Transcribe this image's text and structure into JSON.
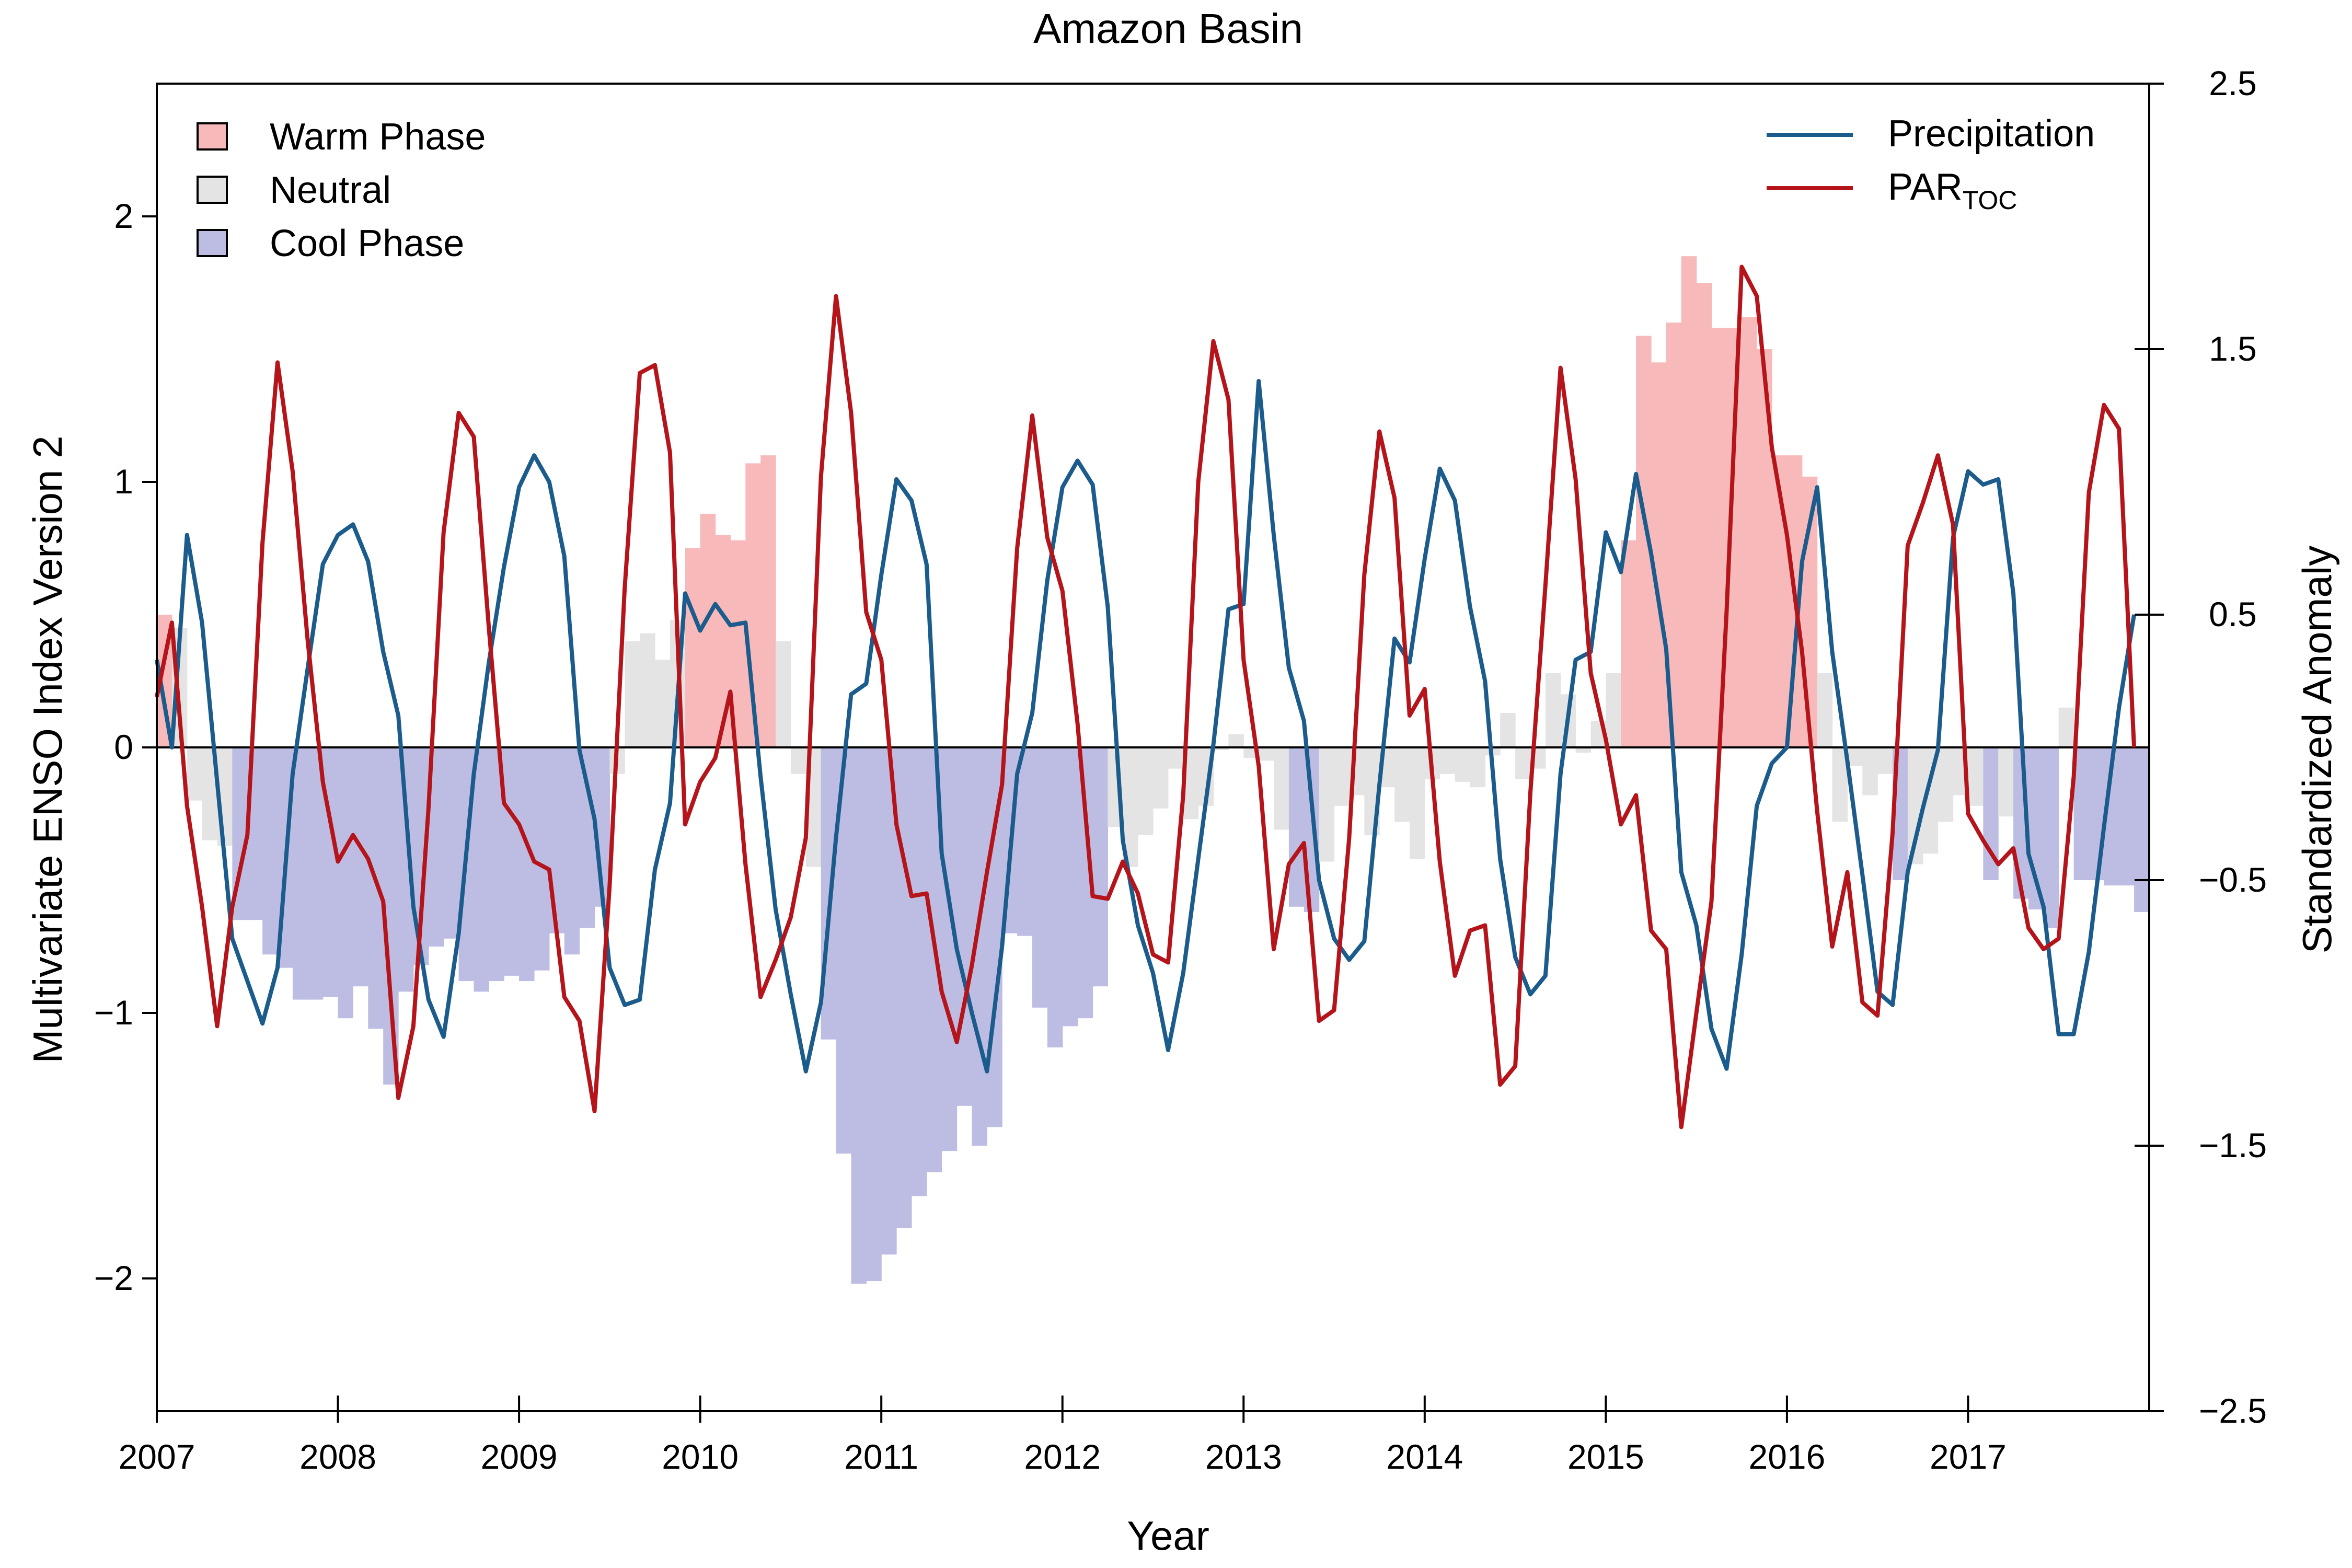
{
  "chart_data": {
    "type": "bar",
    "title": "Amazon Basin",
    "xlabel": "Year",
    "ylabel_left": "Multivariate ENSO Index Version 2",
    "ylabel_right": "Standardized Anomaly",
    "xlim": [
      2007,
      2018
    ],
    "ylim_left": [
      -2.5,
      2.5
    ],
    "ylim_right": [
      -2.5,
      2.5
    ],
    "x_ticks": [
      "2007",
      "2008",
      "2009",
      "2010",
      "2011",
      "2012",
      "2013",
      "2014",
      "2015",
      "2016",
      "2017"
    ],
    "y_left_ticks": [
      "2",
      "1",
      "0",
      "−1",
      "−2"
    ],
    "y_left_tick_values": [
      2,
      1,
      0,
      -1,
      -2
    ],
    "y_right_ticks": [
      "2.5",
      "1.5",
      "0.5",
      "−0.5",
      "−1.5",
      "−2.5"
    ],
    "y_right_tick_values": [
      2.5,
      1.5,
      0.5,
      -0.5,
      -1.5,
      -2.5
    ],
    "legend_left": [
      {
        "label": "Warm Phase",
        "color": "#f7b9b9"
      },
      {
        "label": "Neutral",
        "color": "#e4e4e4"
      },
      {
        "label": "Cool Phase",
        "color": "#bdbde3"
      }
    ],
    "legend_right": [
      {
        "label": "Precipitation",
        "color": "#1b5c8c"
      },
      {
        "label": "PAR",
        "subscript": "TOC",
        "color": "#b5141a"
      }
    ],
    "colors": {
      "warm": "#f7b9b9",
      "neutral": "#e4e4e4",
      "cool": "#bdbde3",
      "precipitation": "#1b5c8c",
      "par": "#b5141a"
    },
    "mei_start": 2007.0,
    "mei_step_months": 1,
    "mei_values": [
      0.5,
      0.45,
      -0.2,
      -0.35,
      -0.37,
      -0.65,
      -0.65,
      -0.78,
      -0.83,
      -0.95,
      -0.95,
      -0.94,
      -1.02,
      -0.9,
      -1.06,
      -1.27,
      -0.92,
      -0.82,
      -0.75,
      -0.72,
      -0.88,
      -0.92,
      -0.88,
      -0.86,
      -0.88,
      -0.84,
      -0.7,
      -0.78,
      -0.68,
      -0.6,
      -0.1,
      0.4,
      0.43,
      0.33,
      0.48,
      0.75,
      0.88,
      0.8,
      0.78,
      1.07,
      1.1,
      0.4,
      -0.1,
      -0.45,
      -1.1,
      -1.53,
      -2.02,
      -2.01,
      -1.91,
      -1.81,
      -1.69,
      -1.6,
      -1.52,
      -1.35,
      -1.5,
      -1.43,
      -0.7,
      -0.71,
      -0.98,
      -1.13,
      -1.05,
      -1.02,
      -0.9,
      -0.3,
      -0.45,
      -0.33,
      -0.23,
      -0.08,
      -0.27,
      -0.22,
      -0.01,
      0.05,
      -0.04,
      -0.05,
      -0.31,
      -0.6,
      -0.62,
      -0.43,
      -0.22,
      -0.18,
      -0.33,
      -0.15,
      -0.28,
      -0.42,
      -0.12,
      -0.1,
      -0.13,
      -0.15,
      -0.03,
      0.13,
      -0.12,
      -0.08,
      0.28,
      0.2,
      -0.02,
      0.1,
      0.28,
      0.78,
      1.55,
      1.45,
      1.6,
      1.85,
      1.75,
      1.58,
      1.58,
      1.62,
      1.5,
      1.1,
      1.1,
      1.02,
      0.28,
      -0.28,
      -0.07,
      -0.18,
      -0.1,
      -0.5,
      -0.44,
      -0.4,
      -0.28,
      -0.18,
      -0.22,
      -0.5,
      -0.26,
      -0.57,
      -0.61,
      -0.68,
      0.15,
      -0.5,
      -0.5,
      -0.52,
      -0.52,
      -0.62
    ],
    "series": [
      {
        "name": "Precipitation",
        "axis": "right",
        "start": 2007.0,
        "step_months": 1,
        "values": [
          0.33,
          0.0,
          0.8,
          0.47,
          -0.13,
          -0.72,
          -0.88,
          -1.04,
          -0.83,
          -0.1,
          0.3,
          0.69,
          0.8,
          0.84,
          0.7,
          0.36,
          0.12,
          -0.6,
          -0.95,
          -1.09,
          -0.7,
          -0.1,
          0.32,
          0.68,
          0.98,
          1.1,
          1.0,
          0.72,
          -0.01,
          -0.27,
          -0.83,
          -0.97,
          -0.95,
          -0.46,
          -0.21,
          0.58,
          0.44,
          0.54,
          0.46,
          0.47,
          -0.11,
          -0.61,
          -0.93,
          -1.22,
          -0.96,
          -0.34,
          0.2,
          0.24,
          0.65,
          1.01,
          0.93,
          0.69,
          -0.4,
          -0.76,
          -1.0,
          -1.22,
          -0.75,
          -0.1,
          0.13,
          0.63,
          0.98,
          1.08,
          0.99,
          0.53,
          -0.35,
          -0.67,
          -0.85,
          -1.14,
          -0.85,
          -0.42,
          0.01,
          0.52,
          0.54,
          1.38,
          0.8,
          0.3,
          0.1,
          -0.5,
          -0.72,
          -0.8,
          -0.73,
          -0.14,
          0.41,
          0.32,
          0.71,
          1.05,
          0.93,
          0.53,
          0.25,
          -0.42,
          -0.79,
          -0.93,
          -0.86,
          -0.1,
          0.33,
          0.36,
          0.81,
          0.66,
          1.03,
          0.73,
          0.37,
          -0.47,
          -0.67,
          -1.06,
          -1.21,
          -0.78,
          -0.22,
          -0.06,
          0.0,
          0.7,
          0.98,
          0.36,
          -0.05,
          -0.48,
          -0.92,
          -0.97,
          -0.47,
          -0.23,
          -0.01,
          0.79,
          1.04,
          0.99,
          1.01,
          0.58,
          -0.4,
          -0.6,
          -1.08,
          -1.08,
          -0.77,
          -0.3,
          0.15,
          0.5
        ]
      },
      {
        "name": "PAR",
        "name_subscript": "TOC",
        "axis": "right",
        "start": 2007.0,
        "step_months": 1,
        "values": [
          0.19,
          0.47,
          -0.22,
          -0.6,
          -1.05,
          -0.6,
          -0.33,
          0.77,
          1.45,
          1.04,
          0.4,
          -0.13,
          -0.43,
          -0.33,
          -0.42,
          -0.58,
          -1.32,
          -1.05,
          -0.23,
          0.81,
          1.26,
          1.17,
          0.45,
          -0.21,
          -0.29,
          -0.43,
          -0.46,
          -0.94,
          -1.03,
          -1.37,
          -0.52,
          0.6,
          1.41,
          1.44,
          1.11,
          -0.29,
          -0.13,
          -0.04,
          0.21,
          -0.44,
          -0.94,
          -0.8,
          -0.64,
          -0.34,
          1.02,
          1.7,
          1.26,
          0.51,
          0.33,
          -0.29,
          -0.56,
          -0.55,
          -0.92,
          -1.11,
          -0.82,
          -0.47,
          -0.14,
          0.75,
          1.25,
          0.79,
          0.59,
          0.09,
          -0.56,
          -0.57,
          -0.43,
          -0.55,
          -0.78,
          -0.81,
          -0.18,
          1.0,
          1.53,
          1.31,
          0.33,
          -0.07,
          -0.76,
          -0.44,
          -0.36,
          -1.03,
          -0.99,
          -0.34,
          0.65,
          1.19,
          0.94,
          0.12,
          0.22,
          -0.43,
          -0.86,
          -0.69,
          -0.67,
          -1.27,
          -1.2,
          -0.17,
          0.61,
          1.43,
          1.01,
          0.28,
          0.03,
          -0.29,
          -0.18,
          -0.69,
          -0.76,
          -1.43,
          -1.0,
          -0.58,
          0.51,
          1.81,
          1.7,
          1.13,
          0.8,
          0.36,
          -0.24,
          -0.75,
          -0.47,
          -0.96,
          -1.01,
          -0.32,
          0.76,
          0.92,
          1.1,
          0.84,
          -0.25,
          -0.35,
          -0.44,
          -0.38,
          -0.68,
          -0.76,
          -0.72,
          -0.11,
          0.96,
          1.29,
          1.2,
          0.0
        ]
      }
    ]
  }
}
